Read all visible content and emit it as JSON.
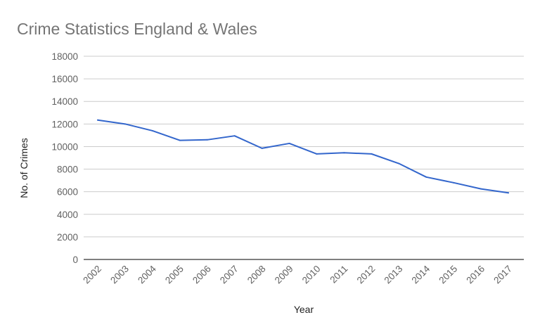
{
  "chart_data": {
    "type": "line",
    "title": "Crime Statistics England & Wales",
    "xlabel": "Year",
    "ylabel": "No. of Crimes",
    "x": [
      "2002",
      "2003",
      "2004",
      "2005",
      "2006",
      "2007",
      "2008",
      "2009",
      "2010",
      "2011",
      "2012",
      "2013",
      "2014",
      "2015",
      "2016",
      "2017"
    ],
    "series": [
      {
        "values": [
          12350,
          12000,
          11400,
          10550,
          10600,
          10950,
          9850,
          10280,
          9350,
          9450,
          9350,
          8500,
          7300,
          6800,
          6250,
          5900
        ],
        "color": "#3366cc"
      }
    ],
    "ylim": [
      0,
      18000
    ],
    "yticks": [
      "0",
      "2000",
      "4000",
      "6000",
      "8000",
      "10000",
      "12000",
      "14000",
      "16000",
      "18000"
    ],
    "grid": true,
    "legend": "none"
  }
}
